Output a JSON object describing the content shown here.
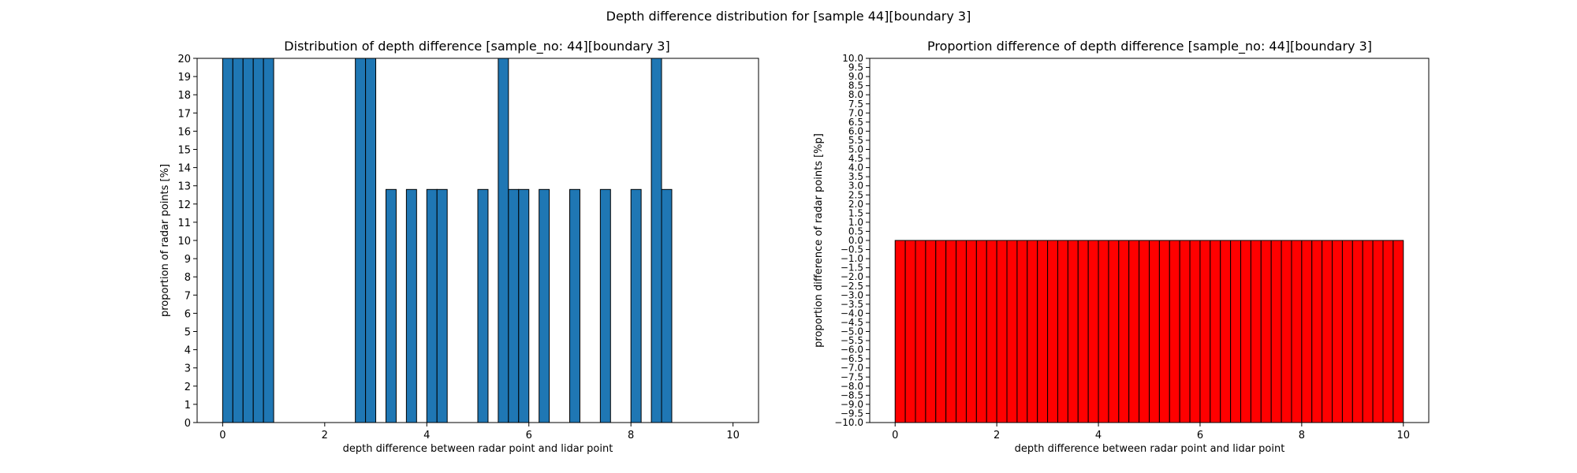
{
  "figure": {
    "title": "Depth difference distribution for [sample 44][boundary 3]"
  },
  "chart_data": [
    {
      "type": "bar",
      "title": "Distribution of depth difference [sample_no: 44][boundary 3]",
      "xlabel": "depth difference between radar point and lidar point",
      "ylabel": "proportion of radar points [%]",
      "xlim": [
        -0.5,
        10.5
      ],
      "ylim": [
        0,
        20
      ],
      "xticks": [
        0,
        2,
        4,
        6,
        8,
        10
      ],
      "yticks": [
        0,
        1,
        2,
        3,
        4,
        5,
        6,
        7,
        8,
        9,
        10,
        11,
        12,
        13,
        14,
        15,
        16,
        17,
        18,
        19,
        20
      ],
      "bin_width": 0.2,
      "bar_color": "#1f77b4",
      "edge_color": "#000000",
      "bins": [
        {
          "x": 0.0,
          "y": 20
        },
        {
          "x": 0.2,
          "y": 20
        },
        {
          "x": 0.4,
          "y": 20
        },
        {
          "x": 0.6,
          "y": 20
        },
        {
          "x": 0.8,
          "y": 20
        },
        {
          "x": 2.6,
          "y": 20
        },
        {
          "x": 2.8,
          "y": 20
        },
        {
          "x": 3.2,
          "y": 12.8
        },
        {
          "x": 3.6,
          "y": 12.8
        },
        {
          "x": 4.0,
          "y": 12.8
        },
        {
          "x": 4.2,
          "y": 12.8
        },
        {
          "x": 5.0,
          "y": 12.8
        },
        {
          "x": 5.4,
          "y": 20
        },
        {
          "x": 5.6,
          "y": 12.8
        },
        {
          "x": 5.8,
          "y": 12.8
        },
        {
          "x": 6.2,
          "y": 12.8
        },
        {
          "x": 6.8,
          "y": 12.8
        },
        {
          "x": 7.4,
          "y": 12.8
        },
        {
          "x": 8.0,
          "y": 12.8
        },
        {
          "x": 8.4,
          "y": 20
        },
        {
          "x": 8.6,
          "y": 12.8
        }
      ]
    },
    {
      "type": "bar",
      "title": "Proportion difference of depth difference [sample_no: 44][boundary 3]",
      "xlabel": "depth difference between radar point and lidar point",
      "ylabel": "proportion difference of radar points [%p]",
      "xlim": [
        -0.5,
        10.5
      ],
      "ylim": [
        -10,
        10
      ],
      "xticks": [
        0,
        2,
        4,
        6,
        8,
        10
      ],
      "ytick_step": 0.5,
      "bin_width": 0.2,
      "bin_start": 0,
      "bin_count": 50,
      "bar_color": "#ff0000",
      "edge_color": "#000000",
      "values_note_level": -10,
      "values": [
        -10,
        -10,
        -10,
        -10,
        -10,
        -10,
        -10,
        -10,
        -10,
        -10,
        -10,
        -10,
        -10,
        -10,
        -10,
        -10,
        -10,
        -10,
        -10,
        -10,
        -10,
        -10,
        -10,
        -10,
        -10,
        -10,
        -10,
        -10,
        -10,
        -10,
        -10,
        -10,
        -10,
        -10,
        -10,
        -10,
        -10,
        -10,
        -10,
        -10,
        -10,
        -10,
        -10,
        -10,
        -10,
        -10,
        -10,
        -10,
        -10,
        -10
      ]
    }
  ]
}
